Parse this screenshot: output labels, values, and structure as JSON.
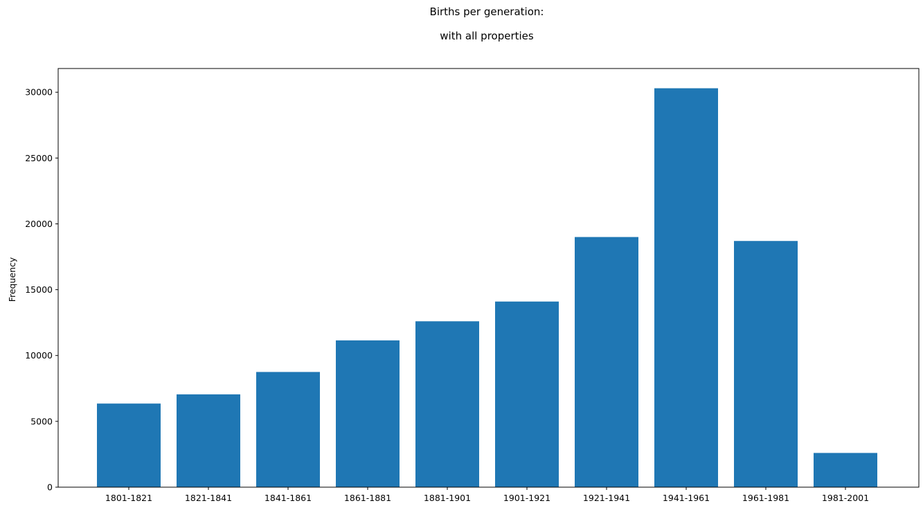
{
  "chart_data": {
    "type": "bar",
    "title": "Births per generation:",
    "subtitle": "with all properties",
    "xlabel": "",
    "ylabel": "Frequency",
    "categories": [
      "1801-1821",
      "1821-1841",
      "1841-1861",
      "1861-1881",
      "1881-1901",
      "1901-1921",
      "1921-1941",
      "1941-1961",
      "1961-1981",
      "1981-2001"
    ],
    "values": [
      6350,
      7050,
      8750,
      11150,
      12600,
      14100,
      19000,
      30300,
      18700,
      2600
    ],
    "ylim": [
      0,
      31800
    ],
    "yticks": [
      0,
      5000,
      10000,
      15000,
      20000,
      25000,
      30000
    ],
    "grid": false,
    "colors": {
      "bar": "#1f77b4",
      "axis": "#000000"
    }
  }
}
